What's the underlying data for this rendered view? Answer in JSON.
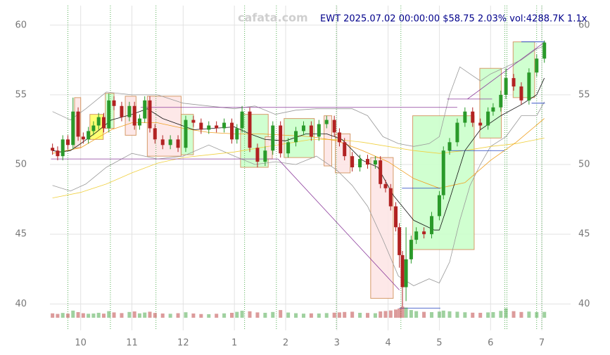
{
  "chart_data": {
    "type": "candlestick",
    "title": "EWT 2025.07.02 00:00:00 $58.75 2.03% vol:4288.7K 1.1x",
    "watermark": "cafata.com",
    "up_color": "#2a9a2a",
    "down_color": "#b22222",
    "grid": true,
    "xlim": [
      9.4,
      19.15
    ],
    "xticks": [
      10,
      11,
      12,
      {
        "value": 13,
        "label": "1"
      },
      {
        "value": 14,
        "label": "2"
      },
      {
        "value": 15,
        "label": "3"
      },
      {
        "value": 16,
        "label": "4"
      },
      {
        "value": 17,
        "label": "5"
      },
      {
        "value": 18,
        "label": "6"
      },
      {
        "value": 19,
        "label": "7"
      }
    ],
    "ylim": [
      38.1,
      61.4
    ],
    "yticks": [
      40,
      45,
      50,
      55,
      60
    ],
    "x": [
      9.45,
      9.55,
      9.65,
      9.75,
      9.85,
      9.95,
      10.05,
      10.15,
      10.25,
      10.35,
      10.45,
      10.55,
      10.65,
      10.8,
      10.95,
      11.05,
      11.15,
      11.25,
      11.35,
      11.45,
      11.6,
      11.75,
      11.9,
      12.05,
      12.2,
      12.35,
      12.5,
      12.65,
      12.8,
      12.95,
      13.05,
      13.15,
      13.3,
      13.45,
      13.6,
      13.75,
      13.9,
      14.05,
      14.2,
      14.35,
      14.5,
      14.65,
      14.8,
      14.95,
      15.05,
      15.15,
      15.3,
      15.45,
      15.6,
      15.75,
      15.85,
      15.95,
      16.05,
      16.15,
      16.22,
      16.28,
      16.35,
      16.45,
      16.55,
      16.7,
      16.85,
      17.0,
      17.08,
      17.2,
      17.35,
      17.5,
      17.65,
      17.8,
      17.95,
      18.05,
      18.2,
      18.3,
      18.45,
      18.6,
      18.75,
      18.9,
      19.05
    ],
    "open": [
      51.2,
      51.0,
      50.6,
      51.8,
      51.4,
      53.8,
      52.0,
      51.8,
      52.4,
      52.8,
      53.4,
      52.6,
      54.6,
      54.2,
      53.4,
      54.2,
      52.8,
      53.3,
      54.6,
      52.6,
      51.8,
      51.4,
      51.8,
      51.2,
      53.2,
      53.0,
      52.5,
      52.8,
      52.6,
      53.0,
      51.8,
      52.6,
      53.8,
      51.2,
      50.2,
      51.0,
      52.8,
      50.8,
      51.6,
      52.4,
      52.8,
      52.0,
      52.9,
      53.2,
      52.3,
      51.6,
      50.6,
      49.8,
      50.4,
      50.0,
      50.3,
      48.6,
      48.3,
      47.0,
      45.5,
      43.5,
      41.2,
      43.2,
      44.6,
      45.2,
      45.0,
      46.3,
      47.8,
      51.0,
      51.6,
      53.0,
      53.8,
      53.0,
      52.8,
      53.8,
      54.1,
      55.0,
      56.2,
      55.6,
      54.6,
      56.6,
      57.6
    ],
    "high": [
      51.5,
      51.3,
      52.1,
      52.1,
      54.8,
      54.1,
      52.3,
      52.7,
      53.1,
      53.7,
      53.7,
      55.1,
      54.9,
      54.5,
      54.5,
      54.5,
      53.6,
      54.9,
      54.9,
      52.9,
      52.1,
      52.1,
      52.1,
      53.5,
      53.5,
      53.3,
      53.1,
      53.1,
      53.3,
      53.3,
      52.9,
      54.2,
      54.1,
      51.5,
      51.3,
      53.1,
      53.1,
      51.9,
      52.7,
      53.1,
      53.1,
      53.2,
      53.5,
      53.5,
      52.6,
      51.9,
      50.9,
      50.7,
      50.7,
      50.6,
      50.6,
      48.9,
      48.6,
      47.3,
      45.8,
      43.8,
      45.5,
      44.9,
      45.5,
      45.5,
      46.6,
      48.1,
      51.3,
      51.9,
      53.3,
      54.1,
      54.1,
      53.3,
      54.1,
      54.4,
      55.3,
      56.9,
      56.5,
      55.9,
      56.9,
      57.9,
      58.9
    ],
    "low": [
      50.7,
      50.3,
      50.3,
      51.1,
      51.1,
      51.7,
      51.5,
      51.5,
      52.1,
      52.5,
      52.3,
      52.3,
      53.9,
      53.1,
      53.1,
      52.5,
      52.5,
      53.0,
      52.3,
      51.5,
      51.1,
      51.1,
      50.9,
      50.9,
      52.7,
      52.2,
      52.2,
      52.3,
      52.3,
      51.5,
      51.5,
      52.3,
      50.9,
      49.8,
      49.9,
      50.7,
      50.5,
      50.5,
      51.3,
      52.1,
      51.7,
      51.7,
      52.6,
      52.0,
      51.3,
      50.3,
      49.5,
      49.5,
      49.7,
      49.7,
      48.3,
      48.0,
      46.7,
      45.2,
      42.6,
      39.8,
      40.2,
      42.9,
      44.3,
      44.7,
      44.7,
      46.0,
      47.5,
      50.7,
      51.3,
      52.7,
      52.7,
      52.5,
      52.5,
      53.5,
      53.8,
      54.7,
      55.3,
      54.3,
      54.3,
      56.3,
      57.3
    ],
    "close": [
      51.0,
      50.6,
      51.8,
      51.4,
      53.8,
      52.0,
      51.8,
      52.4,
      52.8,
      53.4,
      52.6,
      54.6,
      54.2,
      53.4,
      54.2,
      52.8,
      53.3,
      54.6,
      52.6,
      51.8,
      51.4,
      51.8,
      51.2,
      53.2,
      53.0,
      52.5,
      52.8,
      52.6,
      53.0,
      51.8,
      52.6,
      53.8,
      51.2,
      50.2,
      51.0,
      52.8,
      50.8,
      51.6,
      52.4,
      52.8,
      52.0,
      52.9,
      53.2,
      52.3,
      51.6,
      50.6,
      49.8,
      50.4,
      50.0,
      50.3,
      48.6,
      48.3,
      47.0,
      45.5,
      43.5,
      41.2,
      43.2,
      44.6,
      45.2,
      45.0,
      46.3,
      47.8,
      51.0,
      51.6,
      53.0,
      53.8,
      53.0,
      52.8,
      53.8,
      54.1,
      55.0,
      56.2,
      55.6,
      54.6,
      56.6,
      57.6,
      58.75
    ],
    "volume": [
      3200,
      2800,
      3500,
      3000,
      5200,
      4100,
      3300,
      2900,
      3100,
      3600,
      3000,
      4800,
      3900,
      3400,
      4200,
      4600,
      3200,
      3800,
      4400,
      3500,
      3100,
      2900,
      3300,
      4000,
      3100,
      2700,
      2600,
      2900,
      3200,
      3600,
      4300,
      5100,
      4700,
      3900,
      3600,
      4200,
      5600,
      3800,
      3300,
      3000,
      3200,
      3100,
      3400,
      3700,
      3900,
      4200,
      4400,
      3600,
      3500,
      3300,
      4600,
      4900,
      5300,
      6000,
      6800,
      8200,
      7400,
      5600,
      4800,
      4300,
      4100,
      4500,
      5200,
      4700,
      4400,
      4000,
      3700,
      3600,
      3900,
      4100,
      5000,
      6900,
      4800,
      4200,
      4500,
      4100,
      4289
    ],
    "overlays": [
      {
        "color": "#999999",
        "x": [
          9.45,
          9.8,
          10.1,
          10.5,
          11.0,
          11.5,
          12.0,
          12.5,
          13.0,
          13.4,
          13.8,
          14.2,
          14.6,
          15.0,
          15.3,
          15.6,
          15.9,
          16.2,
          16.5,
          16.8,
          17.0,
          17.2,
          17.4,
          17.6,
          17.8,
          18.0,
          18.3,
          18.6,
          18.9,
          19.05
        ],
        "values": [
          53.8,
          53.2,
          54.0,
          55.2,
          55.0,
          55.0,
          54.4,
          54.2,
          54.0,
          54.2,
          53.6,
          53.9,
          54.0,
          54.0,
          54.0,
          53.5,
          52.0,
          51.5,
          51.3,
          51.5,
          52.0,
          55.0,
          57.0,
          56.5,
          56.0,
          56.5,
          57.0,
          57.5,
          58.3,
          58.5
        ]
      },
      {
        "color": "#999999",
        "x": [
          9.45,
          9.8,
          10.1,
          10.5,
          11.0,
          11.5,
          12.0,
          12.5,
          13.0,
          13.4,
          13.8,
          14.2,
          14.6,
          15.0,
          15.3,
          15.6,
          15.9,
          16.2,
          16.5,
          16.8,
          17.0,
          17.2,
          17.4,
          17.6,
          17.8,
          18.0,
          18.3,
          18.6,
          18.9,
          19.05
        ],
        "values": [
          48.5,
          48.1,
          48.6,
          49.8,
          50.8,
          50.4,
          50.6,
          51.4,
          50.6,
          50.0,
          50.2,
          50.0,
          50.6,
          49.6,
          48.5,
          47.0,
          44.6,
          42.0,
          41.3,
          41.8,
          41.5,
          43.0,
          46.0,
          48.5,
          50.0,
          51.3,
          52.0,
          53.5,
          53.5,
          54.5
        ]
      },
      {
        "color": "#f0d040",
        "x": [
          9.45,
          10.0,
          10.5,
          11.0,
          11.5,
          12.0,
          12.5,
          13.0,
          13.5,
          14.0,
          14.5,
          15.0,
          15.5,
          16.0,
          16.5,
          17.0,
          17.5,
          18.0,
          18.5,
          19.05
        ],
        "values": [
          47.6,
          48.0,
          48.6,
          49.4,
          50.1,
          50.5,
          50.7,
          50.9,
          51.2,
          51.5,
          51.8,
          51.8,
          51.6,
          51.3,
          51.0,
          50.8,
          51.0,
          51.3,
          51.5,
          51.9
        ]
      },
      {
        "color": "#f0a020",
        "x": [
          9.45,
          10.0,
          10.6,
          11.0,
          11.5,
          12.0,
          12.5,
          13.0,
          13.5,
          14.0,
          14.5,
          15.0,
          15.5,
          16.0,
          16.5,
          17.0,
          17.5,
          18.0,
          18.5,
          19.05
        ],
        "values": [
          50.8,
          51.2,
          52.5,
          53.0,
          53.0,
          52.6,
          52.3,
          52.2,
          52.2,
          52.1,
          52.0,
          51.7,
          51.0,
          50.2,
          49.0,
          48.3,
          48.7,
          50.3,
          51.6,
          53.3
        ]
      },
      {
        "color": "#111111",
        "x": [
          9.45,
          9.6,
          9.8,
          10.0,
          10.3,
          10.6,
          11.0,
          11.3,
          11.6,
          11.9,
          12.2,
          12.6,
          13.0,
          13.3,
          13.6,
          14.0,
          14.4,
          14.8,
          15.1,
          15.5,
          15.8,
          16.1,
          16.5,
          16.9,
          17.0,
          17.2,
          17.5,
          17.8,
          18.2,
          18.6,
          18.9,
          19.05
        ],
        "values": [
          51.0,
          50.9,
          51.0,
          51.5,
          52.3,
          53.2,
          53.6,
          54.0,
          53.3,
          52.9,
          52.5,
          52.6,
          52.7,
          52.2,
          51.8,
          51.7,
          52.2,
          52.2,
          51.8,
          50.3,
          49.8,
          47.8,
          46.0,
          45.3,
          45.3,
          47.5,
          51.0,
          52.5,
          53.5,
          54.3,
          55.0,
          56.2
        ]
      }
    ],
    "boxes": [
      {
        "x0": 9.88,
        "x1": 10.0,
        "y0": 51.2,
        "y1": 54.8,
        "color": "#fde6e6"
      },
      {
        "x0": 10.18,
        "x1": 10.44,
        "y0": 51.8,
        "y1": 53.6,
        "color": "#ffff66"
      },
      {
        "x0": 10.48,
        "x1": 10.65,
        "y0": 52.6,
        "y1": 55.1,
        "color": "#ccffcc"
      },
      {
        "x0": 10.87,
        "x1": 11.08,
        "y0": 52.1,
        "y1": 54.9,
        "color": "#fde6e6"
      },
      {
        "x0": 11.3,
        "x1": 11.96,
        "y0": 50.6,
        "y1": 54.9,
        "color": "#fde6e6"
      },
      {
        "x0": 11.96,
        "x1": 12.2,
        "y0": 50.7,
        "y1": 53.6,
        "color": "#ccffcc"
      },
      {
        "x0": 13.12,
        "x1": 13.66,
        "y0": 49.8,
        "y1": 53.6,
        "color": "#ccffcc"
      },
      {
        "x0": 13.6,
        "x1": 13.74,
        "y0": 50.4,
        "y1": 52.0,
        "color": "#fde6e6"
      },
      {
        "x0": 13.97,
        "x1": 14.56,
        "y0": 50.5,
        "y1": 53.3,
        "color": "#ccffcc"
      },
      {
        "x0": 14.75,
        "x1": 14.9,
        "y0": 49.9,
        "y1": 53.5,
        "color": "#fde6e6"
      },
      {
        "x0": 14.97,
        "x1": 15.26,
        "y0": 49.4,
        "y1": 52.2,
        "color": "#fde6e6"
      },
      {
        "x0": 15.66,
        "x1": 16.1,
        "y0": 40.4,
        "y1": 50.5,
        "color": "#fde6e6"
      },
      {
        "x0": 16.48,
        "x1": 17.68,
        "y0": 43.9,
        "y1": 53.5,
        "color": "#ccffcc"
      },
      {
        "x0": 17.79,
        "x1": 18.21,
        "y0": 51.9,
        "y1": 56.9,
        "color": "#ccffcc"
      },
      {
        "x0": 18.44,
        "x1": 18.86,
        "y0": 54.8,
        "y1": 58.8,
        "color": "#ccffcc"
      }
    ],
    "segments": [
      {
        "x0": 9.42,
        "x1": 13.85,
        "y0": 50.4,
        "y1": 50.4,
        "color": "#8b3a9b"
      },
      {
        "x0": 11.17,
        "x1": 17.35,
        "y0": 54.1,
        "y1": 54.1,
        "color": "#8b3a9b"
      },
      {
        "x0": 13.85,
        "x1": 16.22,
        "y0": 50.4,
        "y1": 41.0,
        "color": "#8b3a9b"
      },
      {
        "x0": 16.27,
        "x1": 17.02,
        "y0": 48.3,
        "y1": 48.3,
        "color": "#1f3fbf"
      },
      {
        "x0": 17.18,
        "x1": 18.27,
        "y0": 51.0,
        "y1": 51.0,
        "color": "#1f3fbf"
      },
      {
        "x0": 17.15,
        "x1": 18.03,
        "y0": 54.7,
        "y1": 54.7,
        "color": "#8b3a9b"
      },
      {
        "x0": 17.55,
        "x1": 19.06,
        "y0": 54.7,
        "y1": 58.8,
        "color": "#8b3a9b"
      },
      {
        "x0": 18.6,
        "x1": 19.06,
        "y0": 58.8,
        "y1": 58.8,
        "color": "#1f3fbf"
      },
      {
        "x0": 18.8,
        "x1": 19.06,
        "y0": 54.4,
        "y1": 54.4,
        "color": "#1f3fbf"
      },
      {
        "x0": 16.22,
        "x1": 17.02,
        "y0": 39.7,
        "y1": 39.7,
        "color": "#1f3fbf"
      }
    ],
    "vlines": [
      9.75,
      10.58,
      11.47,
      13.2,
      13.82,
      14.99,
      16.25,
      18.28,
      18.32,
      18.9,
      19.0
    ]
  }
}
